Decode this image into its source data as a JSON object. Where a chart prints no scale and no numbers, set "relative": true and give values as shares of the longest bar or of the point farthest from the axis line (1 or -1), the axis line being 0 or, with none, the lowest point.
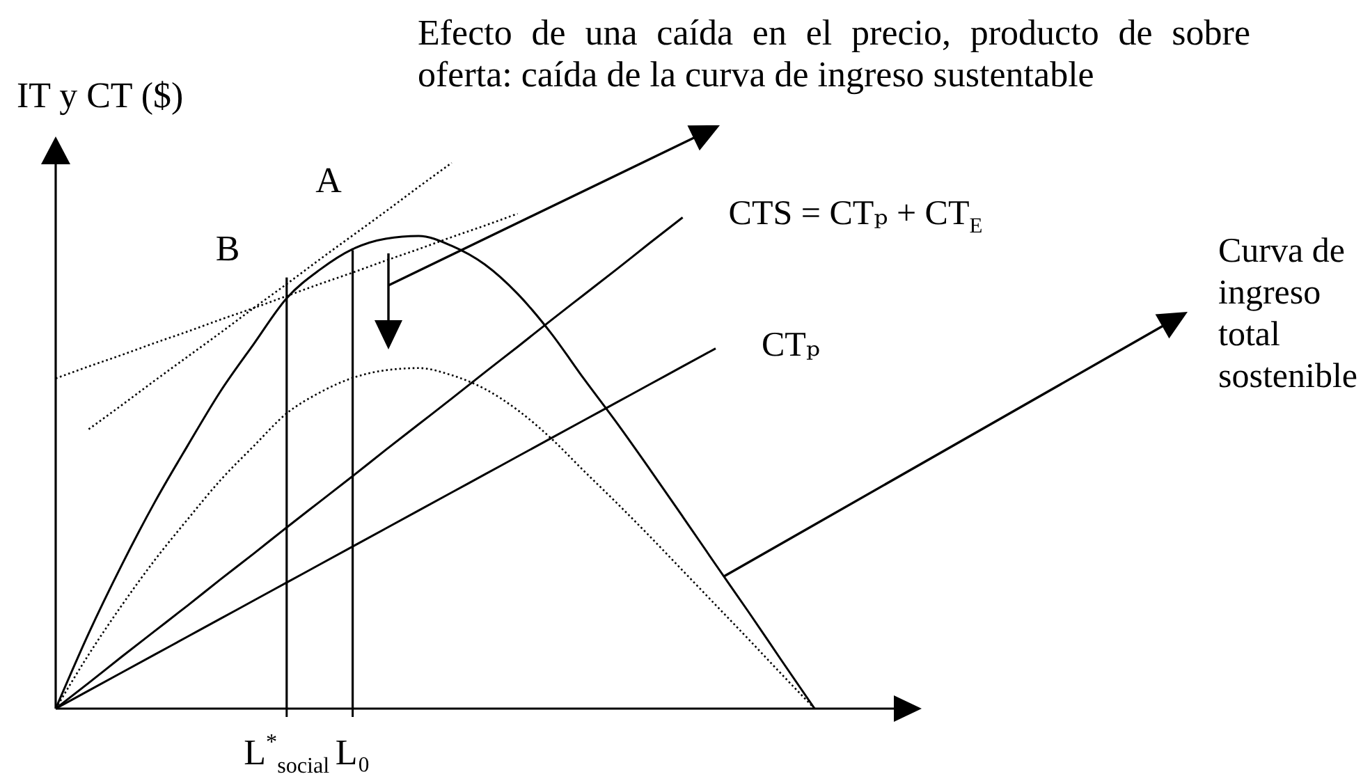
{
  "chart_data": {
    "type": "line",
    "relative": true,
    "ylabel": "IT y CT ($)",
    "categories": [
      null,
      null,
      null,
      null,
      null,
      null,
      null,
      "L$^{*}$$_{social}$",
      null,
      "L₀",
      null,
      null,
      null,
      null,
      null,
      null,
      null,
      null,
      null,
      null,
      null,
      null,
      null,
      null
    ],
    "series": [
      {
        "type": "bar",
        "color": "#000000",
        "values": [
          null,
          null,
          null,
          null,
          null,
          null,
          null,
          0.79,
          null,
          0.84,
          null,
          null,
          null,
          null,
          null,
          null,
          null,
          null,
          null,
          null,
          null,
          null,
          null,
          null
        ]
      },
      {
        "color": "#000000",
        "line_style": "solid",
        "values": [
          0,
          0.138,
          0.263,
          0.378,
          0.482,
          0.582,
          0.668,
          0.752,
          0.804,
          0.842,
          0.861,
          0.866,
          0.848,
          0.814,
          0.76,
          0.689,
          0.605,
          0.524,
          0.439,
          0.352,
          0.264,
          0.177,
          0.088,
          0
        ]
      },
      {
        "color": "#000000",
        "line_style": "dotted",
        "values": [
          0,
          0.099,
          0.189,
          0.272,
          0.347,
          0.419,
          0.481,
          0.541,
          0.579,
          0.606,
          0.62,
          0.624,
          0.611,
          0.586,
          0.547,
          0.496,
          0.436,
          0.377,
          0.316,
          0.253,
          0.19,
          0.127,
          0.063,
          0
        ]
      },
      {
        "name": "CTS = CTₚ + CT$_{E}$",
        "color": "#000000",
        "line_style": "solid",
        "values": [
          0,
          0.047,
          0.095,
          0.142,
          0.189,
          0.237,
          0.284,
          0.332,
          0.379,
          0.426,
          0.474,
          0.521,
          0.568,
          0.616,
          0.663,
          0.711,
          0.758,
          0.805,
          0.853,
          0.9,
          null,
          null,
          null,
          null
        ]
      },
      {
        "name": "CTₚ",
        "color": "#000000",
        "line_style": "solid",
        "values": [
          0,
          0.033,
          0.066,
          0.099,
          0.132,
          0.165,
          0.198,
          0.231,
          0.264,
          0.297,
          0.33,
          0.363,
          0.396,
          0.429,
          0.462,
          0.495,
          0.528,
          0.561,
          0.594,
          0.627,
          0.66,
          null,
          null,
          null
        ]
      },
      {
        "color": "#000000",
        "line_style": "dotted",
        "values": [
          null,
          0.512,
          0.556,
          0.601,
          0.645,
          0.689,
          0.734,
          0.778,
          0.823,
          0.867,
          0.911,
          0.956,
          1,
          null,
          null,
          null,
          null,
          null,
          null,
          null,
          null,
          null,
          null,
          null
        ]
      },
      {
        "color": "#000000",
        "line_style": "dotted",
        "values": [
          0.605,
          0.627,
          0.648,
          0.67,
          0.691,
          0.713,
          0.734,
          0.756,
          0.778,
          0.799,
          0.821,
          0.842,
          0.864,
          0.885,
          0.907,
          null,
          null,
          null,
          null,
          null,
          null,
          null,
          null,
          null
        ]
      }
    ],
    "annotations": [
      "Efecto de una caída en el precio, producto de sobre oferta: caída de la curva de ingreso sustentable",
      "Curva de ingreso total sostenible",
      "A",
      "B"
    ]
  }
}
